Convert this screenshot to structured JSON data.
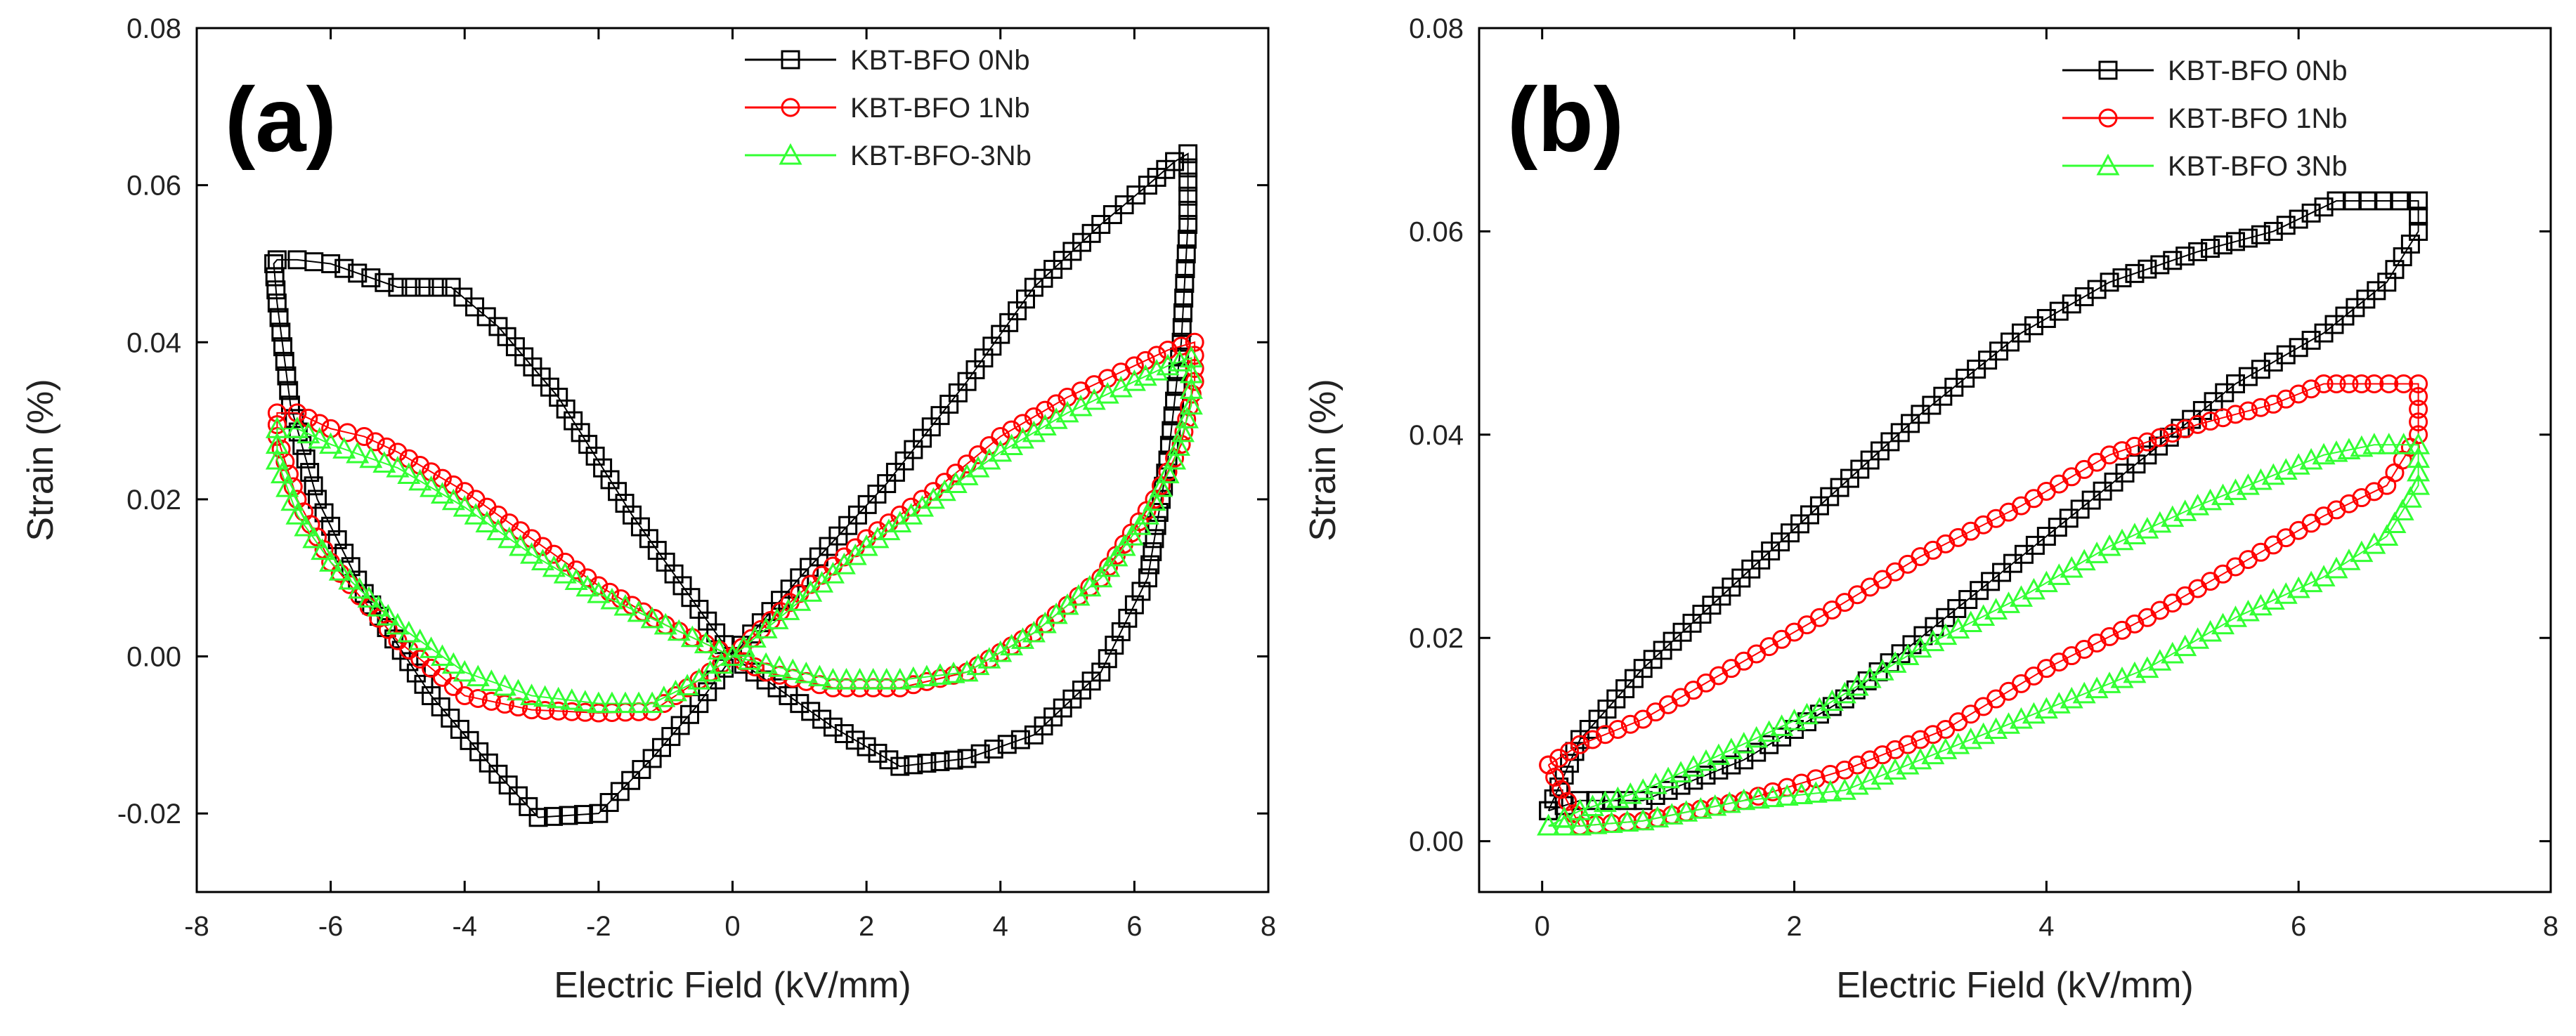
{
  "chart_data": [
    {
      "type": "scatter",
      "panel_label": "(a)",
      "xlabel": "Electric Field (kV/mm)",
      "ylabel": "Strain (%)",
      "xlim": [
        -8,
        8
      ],
      "ylim": [
        -0.03,
        0.08
      ],
      "xticks": [
        -8,
        -6,
        -4,
        -2,
        0,
        2,
        4,
        6,
        8
      ],
      "yticks": [
        -0.02,
        0.0,
        0.02,
        0.04,
        0.06,
        0.08
      ],
      "ytick_labels": [
        "-0.02",
        "0.00",
        "0.02",
        "0.04",
        "0.06",
        "0.08"
      ],
      "legend_position": "top-right",
      "grid": false,
      "series": [
        {
          "name": "KBT-BFO 0Nb",
          "marker": "square",
          "color": "#000000",
          "x": [
            0,
            1,
            2.3,
            3.5,
            4.5,
            5.5,
            6.2,
            6.6,
            6.8,
            6.8,
            6.7,
            6.5,
            6.2,
            5.5,
            4.5,
            3.5,
            2.5,
            1.5,
            0.5,
            0,
            -0.5,
            -1.2,
            -2,
            -2.9,
            -3.5,
            -4.5,
            -5.5,
            -6.2,
            -6.6,
            -6.8,
            -6.85,
            -6.8,
            -6.5,
            -6.0,
            -5.0,
            -4.2,
            -3.5,
            -2.6,
            -1.5,
            -0.5,
            0
          ],
          "y": [
            0.0,
            0.01,
            0.022,
            0.035,
            0.047,
            0.055,
            0.06,
            0.063,
            0.064,
            0.055,
            0.04,
            0.025,
            0.01,
            -0.002,
            -0.01,
            -0.013,
            -0.014,
            -0.009,
            -0.003,
            0.0,
            -0.006,
            -0.013,
            -0.02,
            -0.0205,
            -0.015,
            -0.005,
            0.008,
            0.02,
            0.032,
            0.045,
            0.05,
            0.0505,
            0.0505,
            0.05,
            0.047,
            0.047,
            0.042,
            0.033,
            0.018,
            0.006,
            0.0
          ]
        },
        {
          "name": "KBT-BFO 1Nb",
          "marker": "circle",
          "color": "#ff0000",
          "x": [
            0,
            1,
            2,
            3,
            4,
            5,
            6,
            6.5,
            6.9,
            6.9,
            6.7,
            6.3,
            5.5,
            4.5,
            3.5,
            2.5,
            1.5,
            0.5,
            0,
            -0.5,
            -1.2,
            -2,
            -3,
            -4,
            -5,
            -6,
            -6.5,
            -6.8,
            -6.8,
            -6.5,
            -6,
            -5.5,
            -5,
            -4,
            -3,
            -2,
            -1,
            0
          ],
          "y": [
            0.0,
            0.008,
            0.015,
            0.021,
            0.028,
            0.033,
            0.037,
            0.039,
            0.04,
            0.035,
            0.027,
            0.02,
            0.01,
            0.003,
            -0.002,
            -0.004,
            -0.004,
            -0.002,
            0.0,
            -0.003,
            -0.007,
            -0.0072,
            -0.0068,
            -0.005,
            0.002,
            0.012,
            0.02,
            0.028,
            0.031,
            0.031,
            0.029,
            0.028,
            0.026,
            0.021,
            0.015,
            0.009,
            0.004,
            0.0
          ]
        },
        {
          "name": "KBT-BFO-3Nb",
          "marker": "triangle",
          "color": "#33ff33",
          "x": [
            0,
            1,
            2,
            3,
            4,
            5,
            6,
            6.5,
            6.85,
            6.85,
            6.6,
            6.2,
            5.5,
            4.5,
            3.5,
            2.5,
            1.5,
            0.5,
            0,
            -0.5,
            -1.2,
            -2,
            -3,
            -4,
            -5,
            -6,
            -6.5,
            -6.8,
            -6.8,
            -6.5,
            -6,
            -5,
            -4,
            -3,
            -2,
            -1,
            0
          ],
          "y": [
            0.0,
            0.007,
            0.014,
            0.02,
            0.026,
            0.031,
            0.035,
            0.037,
            0.038,
            0.032,
            0.025,
            0.018,
            0.01,
            0.003,
            -0.002,
            -0.003,
            -0.003,
            -0.001,
            0.0,
            -0.003,
            -0.006,
            -0.006,
            -0.005,
            -0.002,
            0.004,
            0.012,
            0.018,
            0.025,
            0.029,
            0.029,
            0.027,
            0.024,
            0.019,
            0.013,
            0.008,
            0.004,
            0.0
          ]
        }
      ]
    },
    {
      "type": "scatter",
      "panel_label": "(b)",
      "xlabel": "Electric Field (kV/mm)",
      "ylabel": "Strain (%)",
      "xlim": [
        -0.5,
        8
      ],
      "ylim": [
        -0.005,
        0.08
      ],
      "xticks": [
        0,
        2,
        4,
        6,
        8
      ],
      "yticks": [
        0.0,
        0.02,
        0.04,
        0.06,
        0.08
      ],
      "ytick_labels": [
        "0.00",
        "0.02",
        "0.04",
        "0.06",
        "0.08"
      ],
      "legend_position": "top-right",
      "grid": false,
      "series": [
        {
          "name": "KBT-BFO 0Nb",
          "marker": "square",
          "color": "#000000",
          "x": [
            0.05,
            0.3,
            0.8,
            1.5,
            2.2,
            3.0,
            3.8,
            4.5,
            5.2,
            5.8,
            6.3,
            6.8,
            6.95,
            6.95,
            6.7,
            6.2,
            5.5,
            4.8,
            4.0,
            3.2,
            2.4,
            1.6,
            0.8,
            0.3,
            0.05
          ],
          "y": [
            0.003,
            0.01,
            0.017,
            0.025,
            0.033,
            0.042,
            0.05,
            0.055,
            0.058,
            0.06,
            0.063,
            0.063,
            0.063,
            0.06,
            0.055,
            0.05,
            0.045,
            0.038,
            0.03,
            0.022,
            0.014,
            0.008,
            0.004,
            0.004,
            0.003
          ]
        },
        {
          "name": "KBT-BFO 1Nb",
          "marker": "circle",
          "color": "#ff0000",
          "x": [
            0.05,
            0.3,
            0.8,
            1.5,
            2.2,
            3.0,
            3.8,
            4.5,
            5.2,
            5.8,
            6.2,
            6.6,
            6.95,
            6.95,
            6.7,
            6.2,
            5.5,
            4.8,
            4.0,
            3.2,
            2.4,
            1.6,
            0.8,
            0.3,
            0.05
          ],
          "y": [
            0.0075,
            0.0095,
            0.012,
            0.017,
            0.022,
            0.028,
            0.033,
            0.038,
            0.041,
            0.043,
            0.045,
            0.045,
            0.045,
            0.04,
            0.035,
            0.032,
            0.027,
            0.022,
            0.017,
            0.011,
            0.007,
            0.004,
            0.002,
            0.0015,
            0.0075
          ]
        },
        {
          "name": "KBT-BFO 3Nb",
          "marker": "triangle",
          "color": "#33ff33",
          "x": [
            0.05,
            0.3,
            0.8,
            1.5,
            2.2,
            3.0,
            3.8,
            4.5,
            5.2,
            5.8,
            6.2,
            6.6,
            6.95,
            6.95,
            6.7,
            6.2,
            5.5,
            4.8,
            4.0,
            3.2,
            2.4,
            1.6,
            0.8,
            0.3,
            0.05
          ],
          "y": [
            0.0015,
            0.003,
            0.005,
            0.009,
            0.013,
            0.019,
            0.024,
            0.029,
            0.033,
            0.036,
            0.038,
            0.039,
            0.039,
            0.035,
            0.03,
            0.026,
            0.022,
            0.017,
            0.013,
            0.009,
            0.005,
            0.004,
            0.002,
            0.0015,
            0.0015
          ]
        }
      ]
    }
  ]
}
